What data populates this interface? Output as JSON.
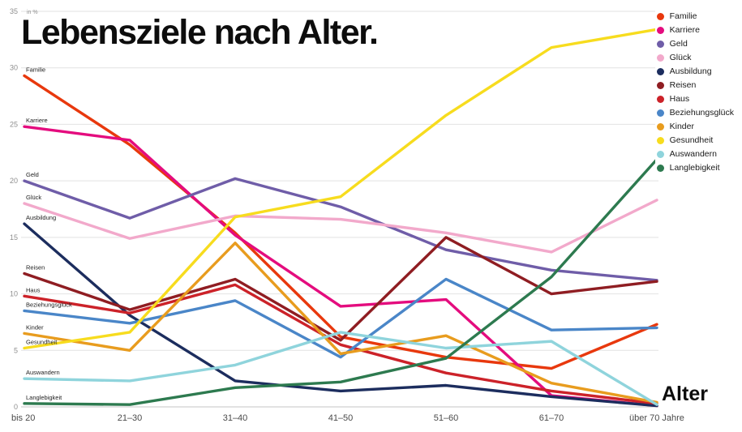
{
  "title": "Lebensziele nach Alter.",
  "y_axis": {
    "unit_label": "in %",
    "ticks": [
      0,
      5,
      10,
      15,
      20,
      25,
      30,
      35
    ]
  },
  "x_axis": {
    "label": "Alter",
    "categories": [
      "bis 20",
      "21–30",
      "31–40",
      "41–50",
      "51–60",
      "61–70",
      "über 70 Jahre"
    ]
  },
  "chart_data": {
    "type": "line",
    "title": "Lebensziele nach Alter.",
    "xlabel": "Alter",
    "ylabel": "in %",
    "ylim": [
      0,
      35
    ],
    "grid": true,
    "legend_position": "top-right",
    "categories": [
      "bis 20",
      "21–30",
      "31–40",
      "41–50",
      "51–60",
      "61–70",
      "über 70 Jahre"
    ],
    "series": [
      {
        "name": "Familie",
        "color": "#e8380d",
        "values": [
          29.3,
          23.2,
          15.4,
          6.2,
          4.4,
          3.4,
          7.3
        ]
      },
      {
        "name": "Karriere",
        "color": "#e40c7e",
        "values": [
          24.8,
          23.6,
          15.2,
          8.9,
          9.5,
          1.0,
          0.1
        ]
      },
      {
        "name": "Geld",
        "color": "#6f5da8",
        "values": [
          20.0,
          16.7,
          20.2,
          17.7,
          13.9,
          12.1,
          11.2
        ]
      },
      {
        "name": "Glück",
        "color": "#f2a9cb",
        "values": [
          18.0,
          14.9,
          16.9,
          16.6,
          15.4,
          13.7,
          18.3
        ]
      },
      {
        "name": "Ausbildung",
        "color": "#1c2d5e",
        "values": [
          16.2,
          8.1,
          2.3,
          1.4,
          1.9,
          0.9,
          0.1
        ]
      },
      {
        "name": "Reisen",
        "color": "#8f1d22",
        "values": [
          11.8,
          8.6,
          11.3,
          5.9,
          15.0,
          10.0,
          11.1
        ]
      },
      {
        "name": "Haus",
        "color": "#cc2229",
        "values": [
          9.8,
          8.3,
          10.8,
          5.5,
          3.0,
          1.4,
          0.3
        ]
      },
      {
        "name": "Beziehungsglück",
        "color": "#4a86c8",
        "values": [
          8.5,
          7.4,
          9.4,
          4.4,
          11.3,
          6.8,
          7.0
        ]
      },
      {
        "name": "Kinder",
        "color": "#e89c1e",
        "values": [
          6.5,
          5.0,
          14.5,
          4.7,
          6.3,
          2.1,
          0.4
        ]
      },
      {
        "name": "Gesundheit",
        "color": "#f7dc1e",
        "values": [
          5.2,
          6.6,
          16.8,
          18.6,
          25.8,
          31.8,
          33.4
        ]
      },
      {
        "name": "Auswandern",
        "color": "#8fd4dc",
        "values": [
          2.5,
          2.3,
          3.7,
          6.6,
          5.2,
          5.8,
          0.2
        ]
      },
      {
        "name": "Langlebigkeit",
        "color": "#2d7a4f",
        "values": [
          0.3,
          0.2,
          1.7,
          2.2,
          4.3,
          11.5,
          21.9
        ]
      }
    ]
  }
}
